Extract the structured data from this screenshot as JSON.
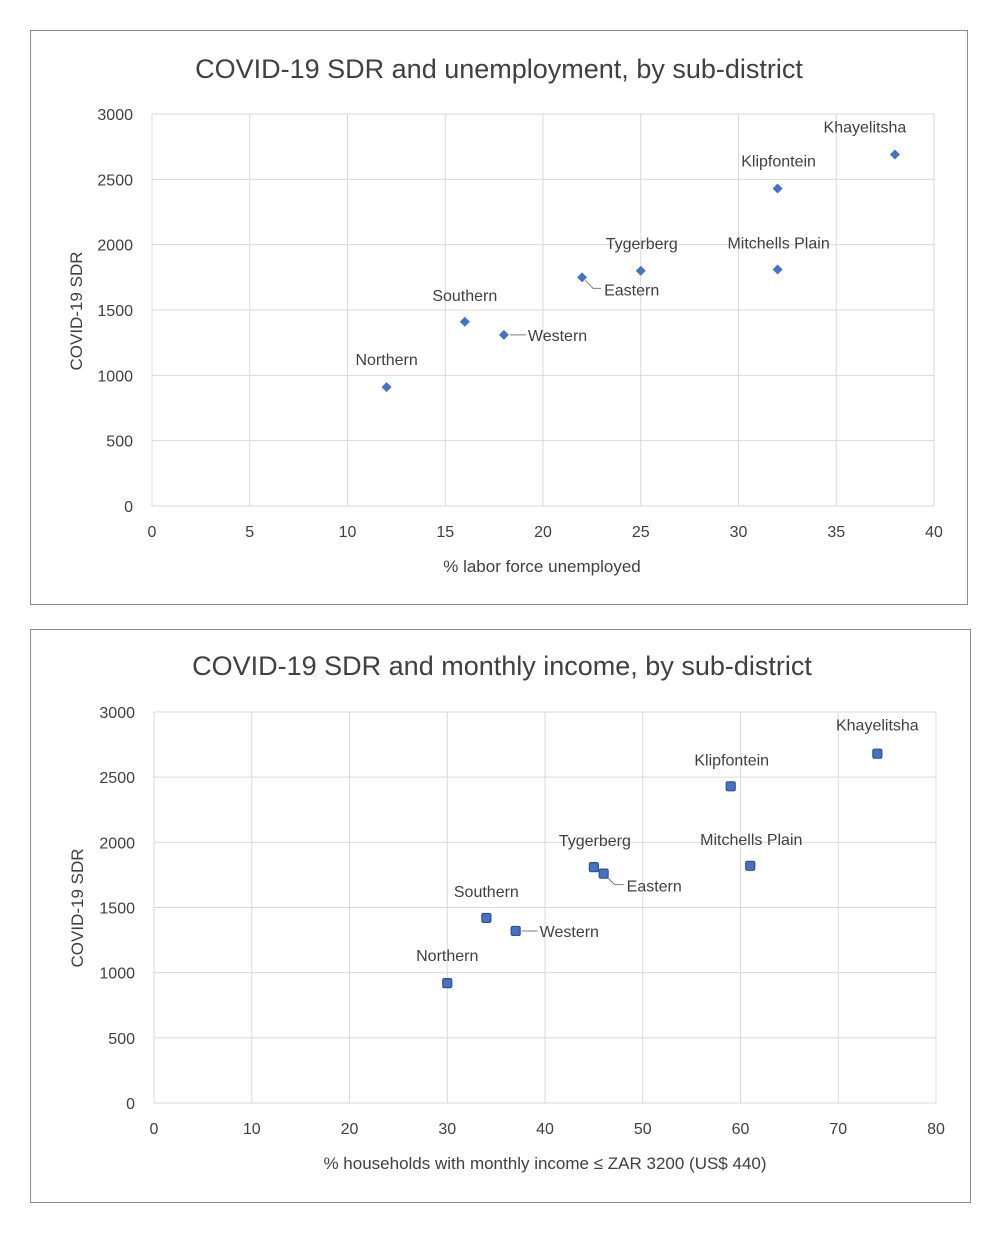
{
  "chart_data": [
    {
      "type": "scatter",
      "title": "COVID-19 SDR and unemployment, by sub-district",
      "xlabel": "% labor force unemployed",
      "ylabel": "COVID-19 SDR",
      "xlim": [
        0,
        40
      ],
      "ylim": [
        0,
        3000
      ],
      "x_ticks": [
        0,
        5,
        10,
        15,
        20,
        25,
        30,
        35,
        40
      ],
      "y_ticks": [
        0,
        500,
        1000,
        1500,
        2000,
        2500,
        3000
      ],
      "grid": true,
      "marker": "diamond",
      "marker_color": "#4472c4",
      "points": [
        {
          "label": "Northern",
          "x": 12,
          "y": 910
        },
        {
          "label": "Southern",
          "x": 16,
          "y": 1410
        },
        {
          "label": "Western",
          "x": 18,
          "y": 1310
        },
        {
          "label": "Eastern",
          "x": 22,
          "y": 1750
        },
        {
          "label": "Tygerberg",
          "x": 25,
          "y": 1800
        },
        {
          "label": "Klipfontein",
          "x": 32,
          "y": 2430
        },
        {
          "label": "Mitchells Plain",
          "x": 32,
          "y": 1810
        },
        {
          "label": "Khayelitsha",
          "x": 38,
          "y": 2690
        }
      ]
    },
    {
      "type": "scatter",
      "title": "COVID-19 SDR and monthly income, by sub-district",
      "xlabel": "% households with monthly income ≤ ZAR 3200 (US$ 440)",
      "ylabel": "COVID-19 SDR",
      "xlim": [
        0,
        80
      ],
      "ylim": [
        0,
        3000
      ],
      "x_ticks": [
        0,
        10,
        20,
        30,
        40,
        50,
        60,
        70,
        80
      ],
      "y_ticks": [
        0,
        500,
        1000,
        1500,
        2000,
        2500,
        3000
      ],
      "grid": true,
      "marker": "square",
      "marker_color": "#4472c4",
      "points": [
        {
          "label": "Northern",
          "x": 30,
          "y": 920
        },
        {
          "label": "Southern",
          "x": 34,
          "y": 1420
        },
        {
          "label": "Western",
          "x": 37,
          "y": 1320
        },
        {
          "label": "Tygerberg",
          "x": 45,
          "y": 1810
        },
        {
          "label": "Eastern",
          "x": 46,
          "y": 1760
        },
        {
          "label": "Klipfontein",
          "x": 59,
          "y": 2430
        },
        {
          "label": "Mitchells Plain",
          "x": 61,
          "y": 1820
        },
        {
          "label": "Khayelitsha",
          "x": 74,
          "y": 2680
        }
      ]
    }
  ]
}
